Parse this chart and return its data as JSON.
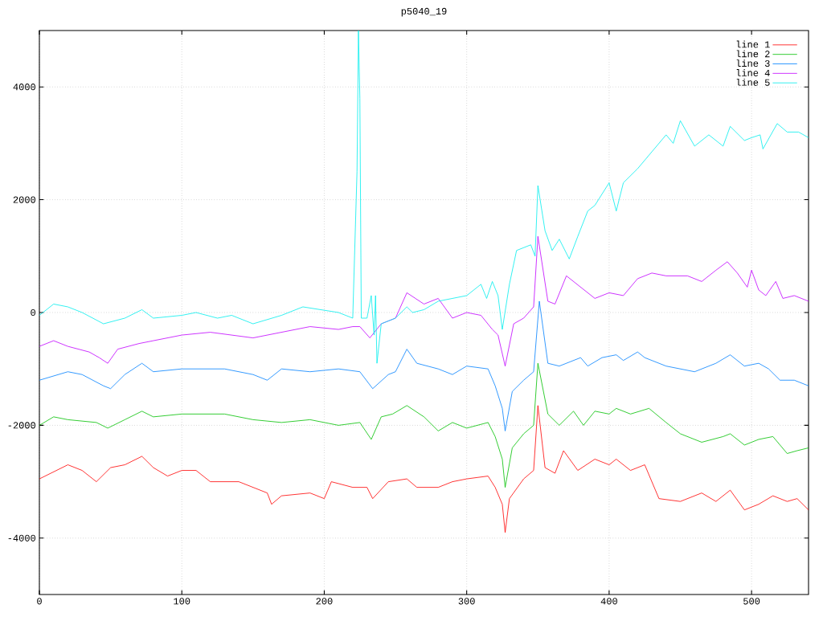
{
  "chart_data": {
    "type": "line",
    "title": "p5040_19",
    "xlim": [
      0,
      540
    ],
    "ylim": [
      -5000,
      5000
    ],
    "xticks": [
      0,
      100,
      200,
      300,
      400,
      500
    ],
    "yticks": [
      -4000,
      -2000,
      0,
      2000,
      4000
    ],
    "grid": true,
    "legend": "top right",
    "series": [
      {
        "name": "line 1",
        "color": "#ff0000",
        "x": [
          0,
          20,
          30,
          40,
          50,
          60,
          72,
          80,
          90,
          100,
          110,
          120,
          140,
          160,
          163,
          170,
          190,
          200,
          205,
          220,
          230,
          234,
          245,
          258,
          265,
          280,
          290,
          300,
          315,
          320,
          325,
          327,
          330,
          340,
          347,
          350,
          355,
          362,
          368,
          378,
          390,
          400,
          405,
          415,
          425,
          435,
          450,
          465,
          475,
          485,
          495,
          505,
          515,
          525,
          532,
          540
        ],
        "values": [
          -2950,
          -2700,
          -2800,
          -3000,
          -2750,
          -2700,
          -2550,
          -2750,
          -2900,
          -2800,
          -2800,
          -3000,
          -3000,
          -3200,
          -3400,
          -3250,
          -3200,
          -3300,
          -3000,
          -3100,
          -3100,
          -3300,
          -3000,
          -2950,
          -3100,
          -3100,
          -3000,
          -2950,
          -2900,
          -3100,
          -3400,
          -3900,
          -3300,
          -2950,
          -2800,
          -1650,
          -2750,
          -2850,
          -2450,
          -2800,
          -2600,
          -2700,
          -2600,
          -2800,
          -2700,
          -3300,
          -3350,
          -3200,
          -3350,
          -3150,
          -3500,
          -3400,
          -3250,
          -3350,
          -3300,
          -3500
        ]
      },
      {
        "name": "line 2",
        "color": "#00c000",
        "x": [
          0,
          10,
          20,
          40,
          48,
          60,
          72,
          80,
          100,
          130,
          150,
          170,
          190,
          210,
          225,
          233,
          240,
          248,
          258,
          270,
          280,
          290,
          300,
          315,
          320,
          325,
          327,
          332,
          340,
          347,
          350,
          357,
          365,
          375,
          382,
          390,
          400,
          405,
          415,
          428,
          440,
          450,
          465,
          480,
          485,
          495,
          505,
          515,
          525,
          532,
          540
        ],
        "values": [
          -2000,
          -1850,
          -1900,
          -1950,
          -2050,
          -1900,
          -1750,
          -1850,
          -1800,
          -1800,
          -1900,
          -1950,
          -1900,
          -2000,
          -1950,
          -2250,
          -1850,
          -1800,
          -1650,
          -1850,
          -2100,
          -1950,
          -2050,
          -1950,
          -2200,
          -2600,
          -3100,
          -2400,
          -2150,
          -2000,
          -900,
          -1800,
          -2000,
          -1750,
          -2000,
          -1750,
          -1800,
          -1700,
          -1800,
          -1700,
          -1950,
          -2150,
          -2300,
          -2200,
          -2150,
          -2350,
          -2250,
          -2200,
          -2500,
          -2450,
          -2400
        ]
      },
      {
        "name": "line 3",
        "color": "#0080ff",
        "x": [
          0,
          20,
          30,
          45,
          50,
          60,
          72,
          80,
          100,
          130,
          150,
          160,
          170,
          190,
          210,
          225,
          234,
          245,
          250,
          258,
          265,
          280,
          290,
          300,
          315,
          320,
          325,
          327,
          332,
          340,
          347,
          351,
          357,
          365,
          380,
          385,
          395,
          405,
          410,
          420,
          425,
          440,
          460,
          475,
          485,
          495,
          505,
          512,
          520,
          530,
          540
        ],
        "values": [
          -1200,
          -1050,
          -1100,
          -1300,
          -1350,
          -1100,
          -900,
          -1050,
          -1000,
          -1000,
          -1100,
          -1200,
          -1000,
          -1050,
          -1000,
          -1050,
          -1350,
          -1100,
          -1050,
          -650,
          -900,
          -1000,
          -1100,
          -950,
          -1000,
          -1300,
          -1700,
          -2100,
          -1400,
          -1200,
          -1050,
          200,
          -900,
          -950,
          -800,
          -950,
          -800,
          -750,
          -850,
          -700,
          -800,
          -950,
          -1050,
          -900,
          -750,
          -950,
          -900,
          -1000,
          -1200,
          -1200,
          -1300
        ]
      },
      {
        "name": "line 4",
        "color": "#c000ff",
        "x": [
          0,
          10,
          20,
          35,
          42,
          48,
          55,
          70,
          80,
          100,
          120,
          150,
          170,
          190,
          210,
          220,
          225,
          232,
          240,
          250,
          258,
          270,
          280,
          290,
          300,
          310,
          318,
          322,
          327,
          333,
          340,
          347,
          350,
          357,
          362,
          370,
          380,
          390,
          400,
          410,
          420,
          430,
          440,
          455,
          465,
          475,
          483,
          490,
          497,
          500,
          505,
          510,
          517,
          522,
          530,
          540
        ],
        "values": [
          -600,
          -500,
          -600,
          -700,
          -800,
          -900,
          -650,
          -550,
          -500,
          -400,
          -350,
          -450,
          -350,
          -250,
          -300,
          -250,
          -250,
          -450,
          -200,
          -100,
          350,
          150,
          250,
          -100,
          0,
          -50,
          -300,
          -400,
          -950,
          -200,
          -100,
          100,
          1350,
          200,
          150,
          650,
          450,
          250,
          350,
          300,
          600,
          700,
          650,
          650,
          550,
          750,
          900,
          700,
          450,
          750,
          400,
          300,
          550,
          250,
          300,
          200
        ]
      },
      {
        "name": "line 5",
        "color": "#00eeee",
        "x": [
          0,
          10,
          20,
          30,
          45,
          60,
          72,
          80,
          100,
          110,
          125,
          135,
          150,
          170,
          185,
          210,
          220,
          223,
          224,
          225,
          226,
          230,
          233,
          235,
          236,
          237,
          240,
          250,
          258,
          262,
          270,
          280,
          290,
          300,
          310,
          314,
          318,
          322,
          325,
          330,
          335,
          345,
          348,
          350,
          355,
          360,
          365,
          372,
          378,
          385,
          390,
          400,
          405,
          410,
          420,
          430,
          440,
          445,
          450,
          460,
          470,
          480,
          485,
          495,
          500,
          506,
          508,
          518,
          525,
          533,
          540
        ],
        "values": [
          -50,
          150,
          100,
          0,
          -200,
          -100,
          50,
          -100,
          -50,
          0,
          -100,
          -50,
          -200,
          -50,
          100,
          0,
          -100,
          2500,
          5000,
          3800,
          -100,
          -100,
          300,
          -400,
          300,
          -900,
          -200,
          -100,
          100,
          0,
          50,
          200,
          250,
          300,
          500,
          250,
          550,
          300,
          -300,
          500,
          1100,
          1200,
          1000,
          2250,
          1450,
          1100,
          1300,
          950,
          1350,
          1800,
          1900,
          2300,
          1800,
          2300,
          2550,
          2850,
          3150,
          3000,
          3400,
          2950,
          3150,
          2950,
          3300,
          3050,
          3100,
          3150,
          2900,
          3350,
          3200,
          3200,
          3100
        ]
      }
    ]
  }
}
